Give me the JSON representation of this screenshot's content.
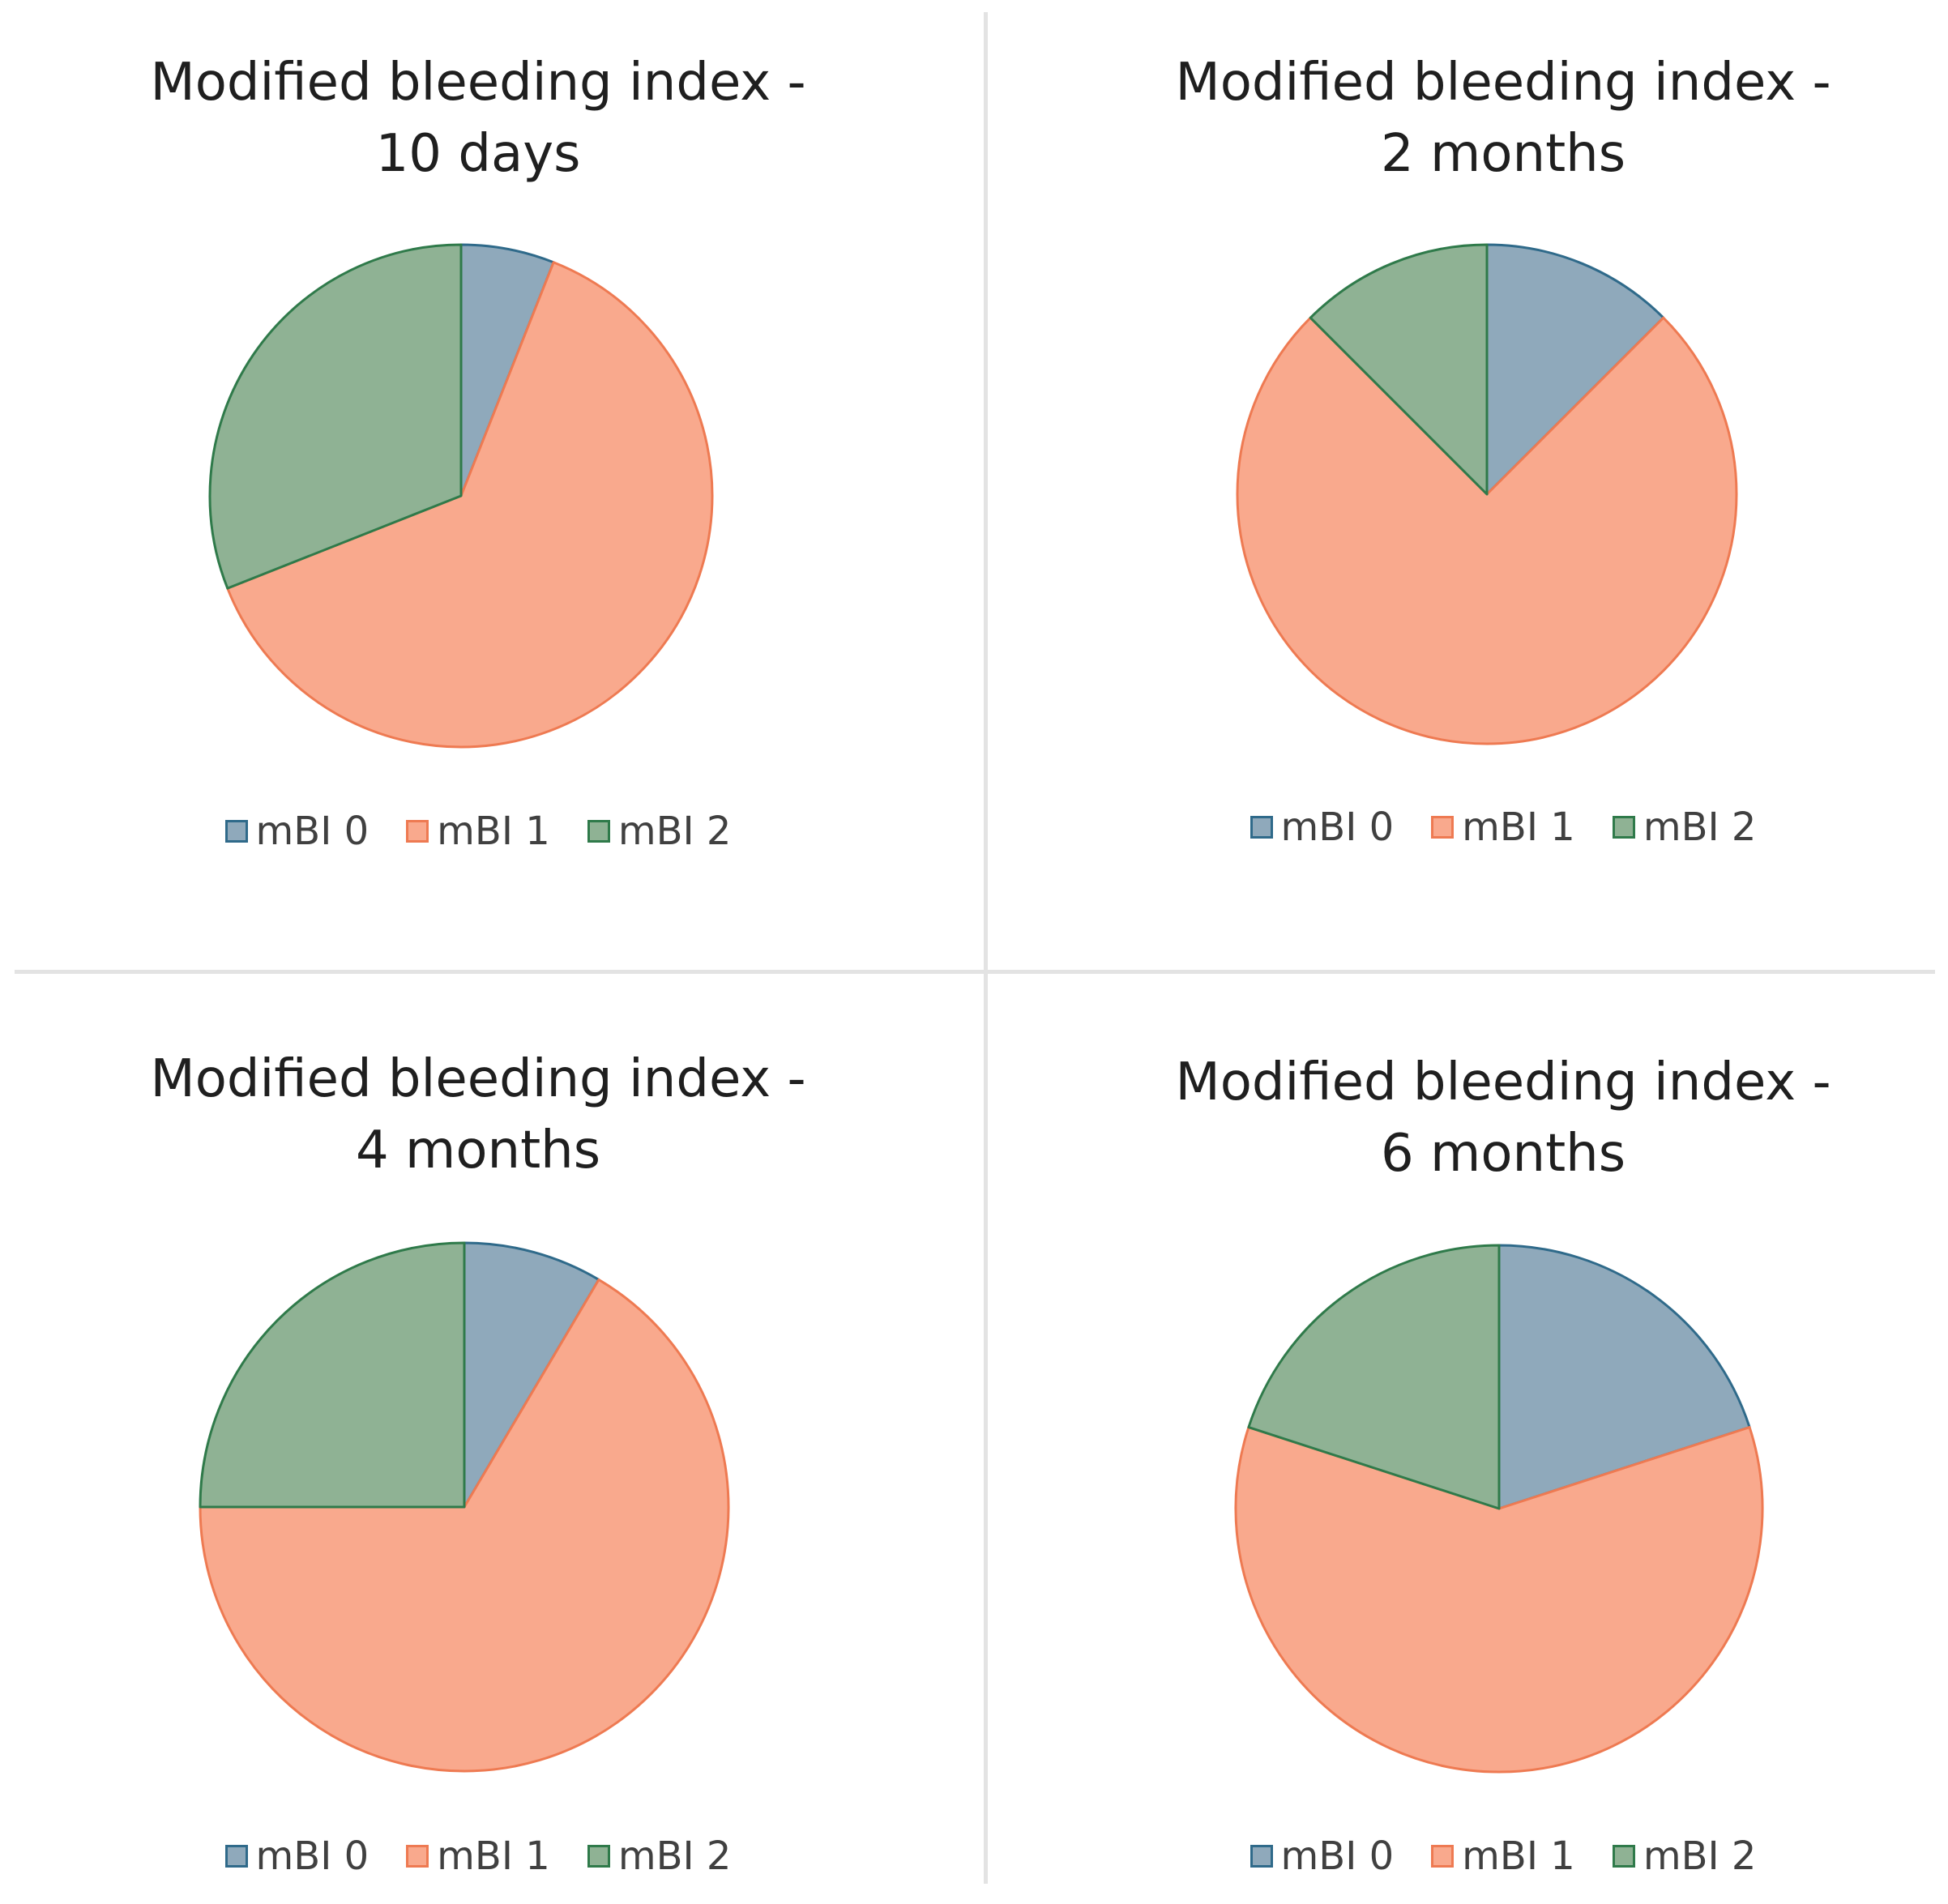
{
  "chart_data": [
    {
      "type": "pie",
      "title_lines": [
        "Modified bleeding index -",
        "10 days"
      ],
      "categories": [
        "mBI 0",
        "mBI 1",
        "mBI 2"
      ],
      "values": [
        6,
        63,
        31
      ]
    },
    {
      "type": "pie",
      "title_lines": [
        "Modified bleeding index -",
        "2 months"
      ],
      "categories": [
        "mBI 0",
        "mBI 1",
        "mBI 2"
      ],
      "values": [
        12.5,
        75,
        12.5
      ]
    },
    {
      "type": "pie",
      "title_lines": [
        "Modified bleeding index -",
        "4 months"
      ],
      "categories": [
        "mBI 0",
        "mBI 1",
        "mBI 2"
      ],
      "values": [
        8.5,
        66.5,
        25
      ]
    },
    {
      "type": "pie",
      "title_lines": [
        "Modified bleeding index -",
        "6 months"
      ],
      "categories": [
        "mBI 0",
        "mBI 1",
        "mBI 2"
      ],
      "values": [
        20,
        60,
        20
      ]
    }
  ],
  "colors": {
    "mbi0_fill": "#8fa9bb",
    "mbi0_stroke": "#2f6a8a",
    "mbi1_fill": "#f9a98d",
    "mbi1_stroke": "#ee7a52",
    "mbi2_fill": "#8fb294",
    "mbi2_stroke": "#2f7a4a"
  }
}
